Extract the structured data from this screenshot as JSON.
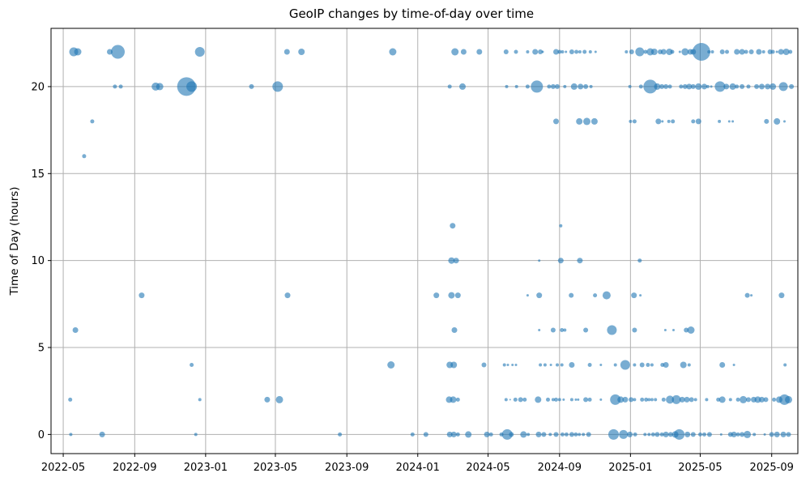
{
  "chart_data": {
    "type": "scatter",
    "title": "GeoIP changes by time-of-day over time",
    "xlabel": "",
    "ylabel": "Time of Day (hours)",
    "x_tick_labels": [
      "2022-05",
      "2022-09",
      "2023-01",
      "2023-05",
      "2023-09",
      "2024-01",
      "2024-05",
      "2024-09",
      "2025-01",
      "2025-05",
      "2025-09"
    ],
    "y_tick_labels": [
      "0",
      "5",
      "10",
      "15",
      "20"
    ],
    "y_tick_values": [
      0,
      5,
      10,
      15,
      20
    ],
    "xlim": [
      "2022-04-10",
      "2025-10-16"
    ],
    "ylim": [
      -1.1,
      23.35
    ],
    "grid": true,
    "grid_color": "#b0b0b0",
    "legend_position": "none",
    "marker_color": "#1f77b4",
    "marker_alpha": 0.6,
    "points_format": [
      "date",
      "hour_of_day",
      "bubble_diameter_px"
    ],
    "points": [
      [
        "2022-05-19",
        22,
        11
      ],
      [
        "2022-05-26",
        22,
        9
      ],
      [
        "2022-07-20",
        22,
        7
      ],
      [
        "2022-08-03",
        22,
        17
      ],
      [
        "2022-12-22",
        22,
        12
      ],
      [
        "2023-05-21",
        22,
        7
      ],
      [
        "2023-06-15",
        22,
        8
      ],
      [
        "2023-11-19",
        22,
        9
      ],
      [
        "2024-03-05",
        22,
        9
      ],
      [
        "2024-03-20",
        22,
        7
      ],
      [
        "2024-04-16",
        22,
        7
      ],
      [
        "2024-06-01",
        22,
        6
      ],
      [
        "2024-06-18",
        22,
        5
      ],
      [
        "2024-07-08",
        22,
        4
      ],
      [
        "2024-07-21",
        22,
        7
      ],
      [
        "2024-07-30",
        22,
        6
      ],
      [
        "2024-08-03",
        22,
        3
      ],
      [
        "2024-08-26",
        22,
        7
      ],
      [
        "2024-09-01",
        22,
        5
      ],
      [
        "2024-09-06",
        22,
        4
      ],
      [
        "2024-09-12",
        22,
        3
      ],
      [
        "2024-09-22",
        22,
        6
      ],
      [
        "2024-09-30",
        22,
        5
      ],
      [
        "2024-10-06",
        22,
        4
      ],
      [
        "2024-10-14",
        22,
        5
      ],
      [
        "2024-10-24",
        22,
        4
      ],
      [
        "2024-11-02",
        22,
        3
      ],
      [
        "2024-12-25",
        22,
        4
      ],
      [
        "2025-01-03",
        22,
        6
      ],
      [
        "2025-01-17",
        22,
        11
      ],
      [
        "2025-01-27",
        22,
        5
      ],
      [
        "2025-02-04",
        22,
        9
      ],
      [
        "2025-02-11",
        22,
        8
      ],
      [
        "2025-02-21",
        22,
        6
      ],
      [
        "2025-02-27",
        22,
        7
      ],
      [
        "2025-03-09",
        22,
        8
      ],
      [
        "2025-03-14",
        22,
        5
      ],
      [
        "2025-03-27",
        22,
        3
      ],
      [
        "2025-04-05",
        22,
        9
      ],
      [
        "2025-04-14",
        22,
        7
      ],
      [
        "2025-04-19",
        22,
        7
      ],
      [
        "2025-05-03",
        22,
        22
      ],
      [
        "2025-05-16",
        22,
        4
      ],
      [
        "2025-05-22",
        22,
        4
      ],
      [
        "2025-06-08",
        22,
        6
      ],
      [
        "2025-06-16",
        22,
        5
      ],
      [
        "2025-07-03",
        22,
        7
      ],
      [
        "2025-07-12",
        22,
        7
      ],
      [
        "2025-07-19",
        22,
        5
      ],
      [
        "2025-07-28",
        22,
        6
      ],
      [
        "2025-08-10",
        22,
        7
      ],
      [
        "2025-08-18",
        22,
        4
      ],
      [
        "2025-08-29",
        22,
        6
      ],
      [
        "2025-09-03",
        22,
        5
      ],
      [
        "2025-09-10",
        22,
        3
      ],
      [
        "2025-09-17",
        22,
        7
      ],
      [
        "2025-09-26",
        22,
        8
      ],
      [
        "2025-10-03",
        22,
        5
      ],
      [
        "2022-07-29",
        20,
        5
      ],
      [
        "2022-08-08",
        20,
        5
      ],
      [
        "2022-10-07",
        20,
        10
      ],
      [
        "2022-10-14",
        20,
        9
      ],
      [
        "2022-11-29",
        20,
        23
      ],
      [
        "2022-12-08",
        20,
        13
      ],
      [
        "2023-03-21",
        20,
        6
      ],
      [
        "2023-05-05",
        20,
        13
      ],
      [
        "2024-02-25",
        20,
        5
      ],
      [
        "2024-03-18",
        20,
        8
      ],
      [
        "2024-06-02",
        20,
        4
      ],
      [
        "2024-06-19",
        20,
        4
      ],
      [
        "2024-07-08",
        20,
        5
      ],
      [
        "2024-07-24",
        20,
        15
      ],
      [
        "2024-08-14",
        20,
        5
      ],
      [
        "2024-08-21",
        20,
        6
      ],
      [
        "2024-08-28",
        20,
        6
      ],
      [
        "2024-09-10",
        20,
        4
      ],
      [
        "2024-09-26",
        20,
        8
      ],
      [
        "2024-10-07",
        20,
        7
      ],
      [
        "2024-10-16",
        20,
        6
      ],
      [
        "2024-10-25",
        20,
        4
      ],
      [
        "2024-12-31",
        20,
        4
      ],
      [
        "2025-01-19",
        20,
        5
      ],
      [
        "2025-02-04",
        20,
        17
      ],
      [
        "2025-02-16",
        20,
        8
      ],
      [
        "2025-02-24",
        20,
        6
      ],
      [
        "2025-03-03",
        20,
        6
      ],
      [
        "2025-03-10",
        20,
        5
      ],
      [
        "2025-03-29",
        20,
        5
      ],
      [
        "2025-04-05",
        20,
        6
      ],
      [
        "2025-04-12",
        20,
        7
      ],
      [
        "2025-04-19",
        20,
        6
      ],
      [
        "2025-04-28",
        20,
        8
      ],
      [
        "2025-05-08",
        20,
        7
      ],
      [
        "2025-05-14",
        20,
        4
      ],
      [
        "2025-05-20",
        20,
        3
      ],
      [
        "2025-06-04",
        20,
        13
      ],
      [
        "2025-06-15",
        20,
        7
      ],
      [
        "2025-06-26",
        20,
        8
      ],
      [
        "2025-07-03",
        20,
        5
      ],
      [
        "2025-07-12",
        20,
        6
      ],
      [
        "2025-07-23",
        20,
        5
      ],
      [
        "2025-08-06",
        20,
        6
      ],
      [
        "2025-08-15",
        20,
        7
      ],
      [
        "2025-08-25",
        20,
        7
      ],
      [
        "2025-09-03",
        20,
        8
      ],
      [
        "2025-09-21",
        20,
        11
      ],
      [
        "2025-10-05",
        20,
        6
      ],
      [
        "2022-06-20",
        18,
        5
      ],
      [
        "2024-08-26",
        18,
        7
      ],
      [
        "2024-10-05",
        18,
        8
      ],
      [
        "2024-10-18",
        18,
        9
      ],
      [
        "2024-10-31",
        18,
        8
      ],
      [
        "2025-01-01",
        18,
        4
      ],
      [
        "2025-01-08",
        18,
        5
      ],
      [
        "2025-02-18",
        18,
        7
      ],
      [
        "2025-02-25",
        18,
        3
      ],
      [
        "2025-03-08",
        18,
        4
      ],
      [
        "2025-03-15",
        18,
        5
      ],
      [
        "2025-04-19",
        18,
        5
      ],
      [
        "2025-04-28",
        18,
        7
      ],
      [
        "2025-06-03",
        18,
        4
      ],
      [
        "2025-06-20",
        18,
        3
      ],
      [
        "2025-06-26",
        18,
        3
      ],
      [
        "2025-08-23",
        18,
        6
      ],
      [
        "2025-09-10",
        18,
        8
      ],
      [
        "2025-09-23",
        18,
        3
      ],
      [
        "2022-06-06",
        16,
        5
      ],
      [
        "2024-03-01",
        12,
        7
      ],
      [
        "2024-09-03",
        12,
        4
      ],
      [
        "2024-02-28",
        10,
        8
      ],
      [
        "2024-03-07",
        10,
        7
      ],
      [
        "2024-07-28",
        10,
        3
      ],
      [
        "2024-09-03",
        10,
        7
      ],
      [
        "2024-10-06",
        10,
        7
      ],
      [
        "2025-01-17",
        10,
        5
      ],
      [
        "2022-09-13",
        8,
        7
      ],
      [
        "2023-05-22",
        8,
        7
      ],
      [
        "2024-02-02",
        8,
        7
      ],
      [
        "2024-02-28",
        8,
        8
      ],
      [
        "2024-03-10",
        8,
        7
      ],
      [
        "2024-07-08",
        8,
        3
      ],
      [
        "2024-07-28",
        8,
        7
      ],
      [
        "2024-09-21",
        8,
        6
      ],
      [
        "2024-11-01",
        8,
        5
      ],
      [
        "2024-11-21",
        8,
        10
      ],
      [
        "2025-01-07",
        8,
        7
      ],
      [
        "2025-01-18",
        8,
        3
      ],
      [
        "2025-07-21",
        8,
        6
      ],
      [
        "2025-07-28",
        8,
        3
      ],
      [
        "2025-09-18",
        8,
        7
      ],
      [
        "2022-05-22",
        6,
        7
      ],
      [
        "2024-03-04",
        6,
        7
      ],
      [
        "2024-07-28",
        6,
        3
      ],
      [
        "2024-08-21",
        6,
        6
      ],
      [
        "2024-09-05",
        6,
        5
      ],
      [
        "2024-09-10",
        6,
        4
      ],
      [
        "2024-10-16",
        6,
        6
      ],
      [
        "2024-11-30",
        6,
        12
      ],
      [
        "2025-01-08",
        6,
        6
      ],
      [
        "2025-03-02",
        6,
        3
      ],
      [
        "2025-03-16",
        6,
        3
      ],
      [
        "2025-04-07",
        6,
        6
      ],
      [
        "2025-04-15",
        6,
        9
      ],
      [
        "2022-12-08",
        4,
        5
      ],
      [
        "2023-11-16",
        4,
        9
      ],
      [
        "2024-02-25",
        4,
        8
      ],
      [
        "2024-03-03",
        4,
        8
      ],
      [
        "2024-04-24",
        4,
        6
      ],
      [
        "2024-05-29",
        4,
        4
      ],
      [
        "2024-06-04",
        4,
        3
      ],
      [
        "2024-06-12",
        4,
        3
      ],
      [
        "2024-06-18",
        4,
        3
      ],
      [
        "2024-07-30",
        4,
        4
      ],
      [
        "2024-08-07",
        4,
        4
      ],
      [
        "2024-08-17",
        4,
        3
      ],
      [
        "2024-08-28",
        4,
        4
      ],
      [
        "2024-09-05",
        4,
        4
      ],
      [
        "2024-09-22",
        4,
        7
      ],
      [
        "2024-10-23",
        4,
        5
      ],
      [
        "2024-11-11",
        4,
        3
      ],
      [
        "2024-12-06",
        4,
        4
      ],
      [
        "2024-12-23",
        4,
        12
      ],
      [
        "2025-01-08",
        4,
        4
      ],
      [
        "2025-01-21",
        4,
        6
      ],
      [
        "2025-01-31",
        4,
        5
      ],
      [
        "2025-02-07",
        4,
        4
      ],
      [
        "2025-02-25",
        4,
        5
      ],
      [
        "2025-03-03",
        4,
        7
      ],
      [
        "2025-04-02",
        4,
        8
      ],
      [
        "2025-04-12",
        4,
        4
      ],
      [
        "2025-06-08",
        4,
        7
      ],
      [
        "2025-06-28",
        4,
        3
      ],
      [
        "2025-09-24",
        4,
        4
      ],
      [
        "2022-05-13",
        2,
        5
      ],
      [
        "2022-12-22",
        2,
        4
      ],
      [
        "2023-04-17",
        2,
        7
      ],
      [
        "2023-05-08",
        2,
        9
      ],
      [
        "2024-02-24",
        2,
        8
      ],
      [
        "2024-03-02",
        2,
        8
      ],
      [
        "2024-03-10",
        2,
        5
      ],
      [
        "2024-06-01",
        2,
        4
      ],
      [
        "2024-06-08",
        2,
        2
      ],
      [
        "2024-06-17",
        2,
        5
      ],
      [
        "2024-06-26",
        2,
        6
      ],
      [
        "2024-07-03",
        2,
        5
      ],
      [
        "2024-07-26",
        2,
        8
      ],
      [
        "2024-08-12",
        2,
        5
      ],
      [
        "2024-08-21",
        2,
        4
      ],
      [
        "2024-08-26",
        2,
        5
      ],
      [
        "2024-09-01",
        2,
        4
      ],
      [
        "2024-09-08",
        2,
        3
      ],
      [
        "2024-09-22",
        2,
        4
      ],
      [
        "2024-09-29",
        2,
        3
      ],
      [
        "2024-10-03",
        2,
        3
      ],
      [
        "2024-10-16",
        2,
        6
      ],
      [
        "2024-10-23",
        2,
        5
      ],
      [
        "2024-11-11",
        2,
        3
      ],
      [
        "2024-12-06",
        2,
        13
      ],
      [
        "2024-12-15",
        2,
        8
      ],
      [
        "2024-12-23",
        2,
        7
      ],
      [
        "2025-01-02",
        2,
        6
      ],
      [
        "2025-01-08",
        2,
        4
      ],
      [
        "2025-01-21",
        2,
        5
      ],
      [
        "2025-01-28",
        2,
        5
      ],
      [
        "2025-02-02",
        2,
        4
      ],
      [
        "2025-02-07",
        2,
        4
      ],
      [
        "2025-02-13",
        2,
        4
      ],
      [
        "2025-02-27",
        2,
        5
      ],
      [
        "2025-03-10",
        2,
        10
      ],
      [
        "2025-03-21",
        2,
        11
      ],
      [
        "2025-03-31",
        2,
        7
      ],
      [
        "2025-04-08",
        2,
        7
      ],
      [
        "2025-04-16",
        2,
        6
      ],
      [
        "2025-04-23",
        2,
        4
      ],
      [
        "2025-05-12",
        2,
        4
      ],
      [
        "2025-06-01",
        2,
        5
      ],
      [
        "2025-06-08",
        2,
        8
      ],
      [
        "2025-06-22",
        2,
        4
      ],
      [
        "2025-07-05",
        2,
        5
      ],
      [
        "2025-07-14",
        2,
        9
      ],
      [
        "2025-07-23",
        2,
        6
      ],
      [
        "2025-08-01",
        2,
        7
      ],
      [
        "2025-08-08",
        2,
        8
      ],
      [
        "2025-08-15",
        2,
        7
      ],
      [
        "2025-08-22",
        2,
        6
      ],
      [
        "2025-09-05",
        2,
        5
      ],
      [
        "2025-09-14",
        2,
        8
      ],
      [
        "2025-09-23",
        2,
        13
      ],
      [
        "2025-09-30",
        2,
        9
      ],
      [
        "2022-05-14",
        0,
        4
      ],
      [
        "2022-07-07",
        0,
        7
      ],
      [
        "2022-12-15",
        0,
        4
      ],
      [
        "2023-08-20",
        0,
        5
      ],
      [
        "2023-12-23",
        0,
        5
      ],
      [
        "2024-01-15",
        0,
        6
      ],
      [
        "2024-02-25",
        0,
        7
      ],
      [
        "2024-03-03",
        0,
        7
      ],
      [
        "2024-03-10",
        0,
        5
      ],
      [
        "2024-03-28",
        0,
        8
      ],
      [
        "2024-04-29",
        0,
        7
      ],
      [
        "2024-05-06",
        0,
        5
      ],
      [
        "2024-05-24",
        0,
        5
      ],
      [
        "2024-06-03",
        0,
        13
      ],
      [
        "2024-06-10",
        0,
        6
      ],
      [
        "2024-07-01",
        0,
        8
      ],
      [
        "2024-07-09",
        0,
        4
      ],
      [
        "2024-07-27",
        0,
        7
      ],
      [
        "2024-08-05",
        0,
        6
      ],
      [
        "2024-08-16",
        0,
        4
      ],
      [
        "2024-08-26",
        0,
        6
      ],
      [
        "2024-09-06",
        0,
        5
      ],
      [
        "2024-09-13",
        0,
        5
      ],
      [
        "2024-09-22",
        0,
        6
      ],
      [
        "2024-09-29",
        0,
        5
      ],
      [
        "2024-10-05",
        0,
        4
      ],
      [
        "2024-10-12",
        0,
        4
      ],
      [
        "2024-10-21",
        0,
        6
      ],
      [
        "2024-12-03",
        0,
        13
      ],
      [
        "2024-12-20",
        0,
        11
      ],
      [
        "2024-12-31",
        0,
        7
      ],
      [
        "2025-01-09",
        0,
        5
      ],
      [
        "2025-01-26",
        0,
        4
      ],
      [
        "2025-02-02",
        0,
        4
      ],
      [
        "2025-02-09",
        0,
        5
      ],
      [
        "2025-02-16",
        0,
        6
      ],
      [
        "2025-02-24",
        0,
        5
      ],
      [
        "2025-03-03",
        0,
        7
      ],
      [
        "2025-03-11",
        0,
        6
      ],
      [
        "2025-03-19",
        0,
        8
      ],
      [
        "2025-03-26",
        0,
        13
      ],
      [
        "2025-04-09",
        0,
        7
      ],
      [
        "2025-04-19",
        0,
        6
      ],
      [
        "2025-05-01",
        0,
        5
      ],
      [
        "2025-05-08",
        0,
        5
      ],
      [
        "2025-05-17",
        0,
        6
      ],
      [
        "2025-06-06",
        0,
        3
      ],
      [
        "2025-06-22",
        0,
        6
      ],
      [
        "2025-06-28",
        0,
        7
      ],
      [
        "2025-07-05",
        0,
        5
      ],
      [
        "2025-07-12",
        0,
        6
      ],
      [
        "2025-07-21",
        0,
        9
      ],
      [
        "2025-08-02",
        0,
        4
      ],
      [
        "2025-08-20",
        0,
        3
      ],
      [
        "2025-09-01",
        0,
        6
      ],
      [
        "2025-09-10",
        0,
        7
      ],
      [
        "2025-09-21",
        0,
        7
      ],
      [
        "2025-09-30",
        0,
        6
      ]
    ]
  }
}
